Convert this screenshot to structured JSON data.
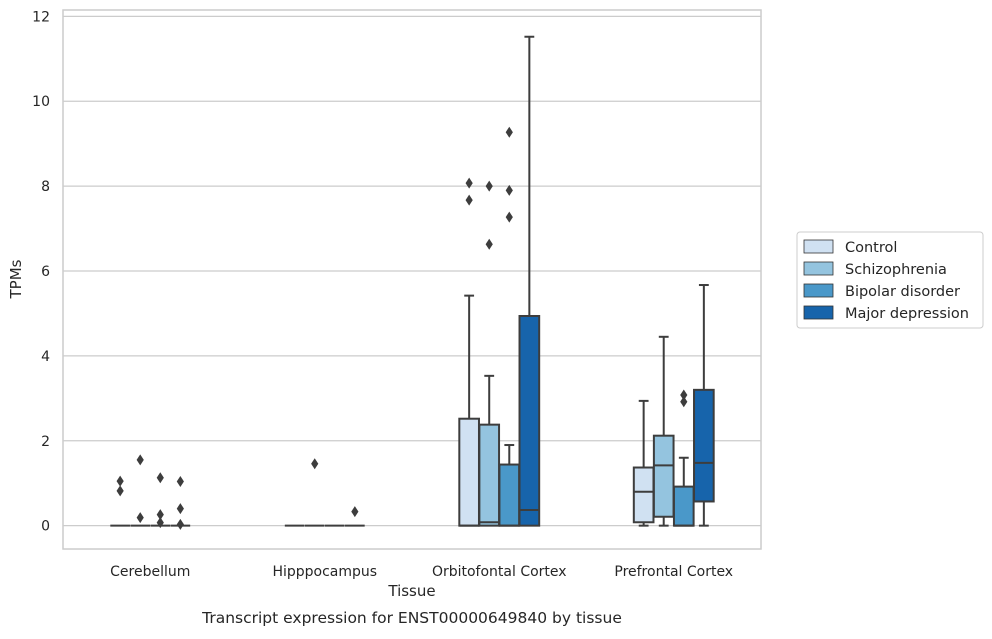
{
  "chart_data": {
    "type": "box",
    "caption": "Transcript expression for ENST00000649840 by tissue",
    "xlabel": "Tissue",
    "ylabel": "TPMs",
    "ylim": [
      -0.55,
      12.15
    ],
    "yticks": [
      0,
      2,
      4,
      6,
      8,
      10,
      12
    ],
    "grid": "horizontal",
    "legend_position": "right",
    "categories": [
      "Cerebellum",
      "Hipppocampus",
      "Orbitofontal Cortex",
      "Prefrontal Cortex"
    ],
    "series": [
      {
        "name": "Control",
        "color": "#d0e1f2",
        "boxes": [
          {
            "q1": 0,
            "median": 0,
            "q3": 0,
            "whisker_low": 0,
            "whisker_high": 0,
            "outliers": [
              1.05,
              0.82
            ]
          },
          {
            "q1": 0,
            "median": 0,
            "q3": 0,
            "whisker_low": 0,
            "whisker_high": 0,
            "outliers": []
          },
          {
            "q1": 0,
            "median": 0,
            "q3": 2.52,
            "whisker_low": 0,
            "whisker_high": 5.42,
            "outliers": [
              8.07,
              7.67
            ]
          },
          {
            "q1": 0.08,
            "median": 0.8,
            "q3": 1.37,
            "whisker_low": 0,
            "whisker_high": 2.94,
            "outliers": []
          }
        ]
      },
      {
        "name": "Schizophrenia",
        "color": "#94c4df",
        "boxes": [
          {
            "q1": 0,
            "median": 0,
            "q3": 0,
            "whisker_low": 0,
            "whisker_high": 0,
            "outliers": [
              1.55,
              0.19
            ]
          },
          {
            "q1": 0,
            "median": 0,
            "q3": 0,
            "whisker_low": 0,
            "whisker_high": 0,
            "outliers": [
              1.46
            ]
          },
          {
            "q1": 0,
            "median": 0.08,
            "q3": 2.38,
            "whisker_low": 0,
            "whisker_high": 3.53,
            "outliers": [
              8.0,
              6.63
            ]
          },
          {
            "q1": 0.21,
            "median": 1.42,
            "q3": 2.12,
            "whisker_low": 0,
            "whisker_high": 4.45,
            "outliers": []
          }
        ]
      },
      {
        "name": "Bipolar disorder",
        "color": "#4a98c9",
        "boxes": [
          {
            "q1": 0,
            "median": 0,
            "q3": 0,
            "whisker_low": 0,
            "whisker_high": 0,
            "outliers": [
              1.13,
              0.26,
              0.07
            ]
          },
          {
            "q1": 0,
            "median": 0,
            "q3": 0,
            "whisker_low": 0,
            "whisker_high": 0,
            "outliers": []
          },
          {
            "q1": 0,
            "median": 0,
            "q3": 1.44,
            "whisker_low": 0,
            "whisker_high": 1.9,
            "outliers": [
              9.27,
              7.9,
              7.27
            ]
          },
          {
            "q1": 0,
            "median": 0,
            "q3": 0.92,
            "whisker_low": 0,
            "whisker_high": 1.6,
            "outliers": [
              3.08,
              2.92
            ]
          }
        ]
      },
      {
        "name": "Major depression",
        "color": "#1764ab",
        "boxes": [
          {
            "q1": 0,
            "median": 0,
            "q3": 0,
            "whisker_low": 0,
            "whisker_high": 0,
            "outliers": [
              1.04,
              0.4,
              0.03
            ]
          },
          {
            "q1": 0,
            "median": 0,
            "q3": 0,
            "whisker_low": 0,
            "whisker_high": 0,
            "outliers": [
              0.33
            ]
          },
          {
            "q1": 0,
            "median": 0.37,
            "q3": 4.94,
            "whisker_low": 0,
            "whisker_high": 11.52,
            "outliers": []
          },
          {
            "q1": 0.57,
            "median": 1.48,
            "q3": 3.2,
            "whisker_low": 0,
            "whisker_high": 5.67,
            "outliers": []
          }
        ]
      }
    ]
  }
}
